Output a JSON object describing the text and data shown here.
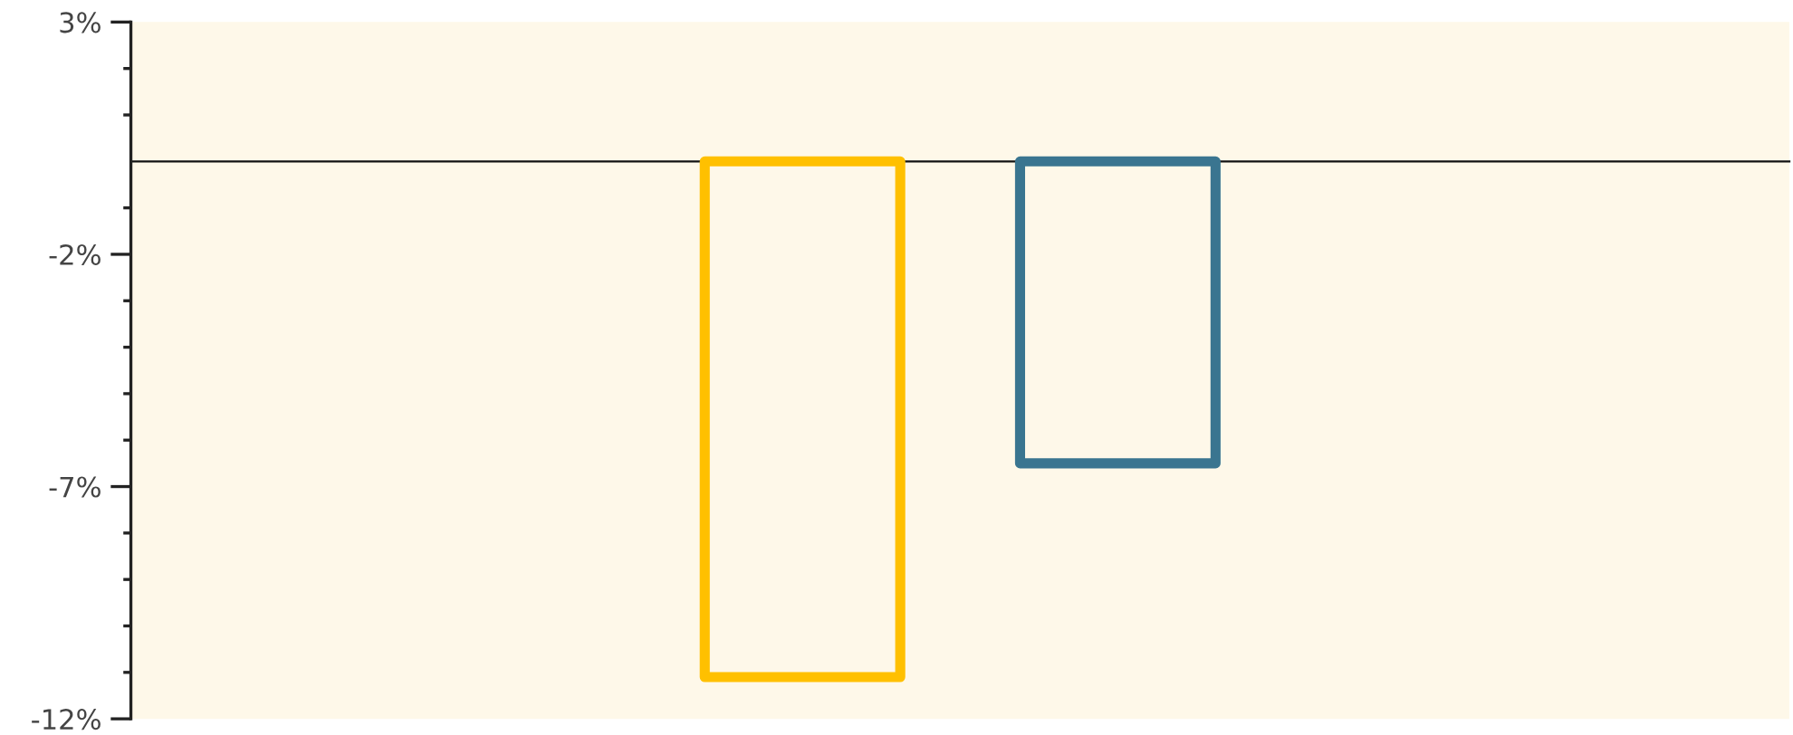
{
  "chart_data": {
    "type": "bar",
    "categories": [
      null,
      null
    ],
    "values": [
      -11.1,
      -6.5
    ],
    "colors": [
      "#ffc000",
      "#3a7590"
    ],
    "ylim": [
      -12,
      3
    ],
    "yticks": [
      {
        "value": 3,
        "label": "3%"
      },
      {
        "value": 2,
        "label": null
      },
      {
        "value": 1,
        "label": null
      },
      {
        "value": -1,
        "label": null
      },
      {
        "value": -2,
        "label": "-2%"
      },
      {
        "value": -3,
        "label": null
      },
      {
        "value": -4,
        "label": null
      },
      {
        "value": -5,
        "label": null
      },
      {
        "value": -6,
        "label": null
      },
      {
        "value": -7,
        "label": "-7%"
      },
      {
        "value": -8,
        "label": null
      },
      {
        "value": -9,
        "label": null
      },
      {
        "value": -10,
        "label": null
      },
      {
        "value": -11,
        "label": null
      },
      {
        "value": -12,
        "label": "-12%"
      }
    ],
    "grid": false
  }
}
